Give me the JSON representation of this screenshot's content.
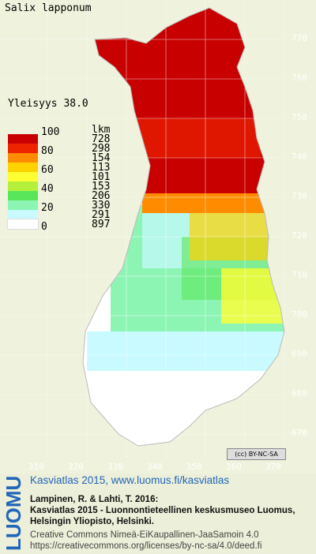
{
  "species": "Salix lapponum",
  "frequency_label": "Yleisyys 38.0",
  "legend": {
    "count_header": "lkm",
    "classes": [
      {
        "value": "100",
        "count": "728",
        "color": "#c80000"
      },
      {
        "value": "80",
        "count": "298",
        "color": "#ee2400"
      },
      {
        "value": "",
        "count": "154",
        "color": "#ff8c00"
      },
      {
        "value": "60",
        "count": "113",
        "color": "#ffd200"
      },
      {
        "value": "",
        "count": "101",
        "color": "#ffff33"
      },
      {
        "value": "40",
        "count": "153",
        "color": "#b4f03c"
      },
      {
        "value": "",
        "count": "206",
        "color": "#5ae65a"
      },
      {
        "value": "20",
        "count": "330",
        "color": "#8cf5b4"
      },
      {
        "value": "",
        "count": "291",
        "color": "#c8faff"
      },
      {
        "value": "0",
        "count": "897",
        "color": "#ffffff"
      }
    ]
  },
  "y_axis_labels": [
    "770",
    "760",
    "750",
    "740",
    "730",
    "720",
    "710",
    "700",
    "690",
    "680",
    "670"
  ],
  "x_axis_labels": [
    "310",
    "320",
    "330",
    "340",
    "350",
    "360",
    "370"
  ],
  "license_badge": "(cc) BY-NC-SA",
  "footer": {
    "logo_text": "LUOMUS",
    "title": "Kasviatlas 2015, www.luomus.fi/kasviatlas",
    "ref_line1": "Lampinen, R. & Lahti, T. 2016:",
    "ref_line2": "Kasviatlas 2015 - Luonnontieteellinen keskusmuseo Luomus,",
    "ref_line3": "Helsingin Yliopisto, Helsinki.",
    "license_line1": "Creative Commons Nimeä-EiKaupallinen-JaaSamoin 4.0",
    "license_line2": "https://creativecommons.org/licenses/by-nc-sa/4.0/deed.fi"
  },
  "colors": {
    "footer_title": "#2366b8",
    "logo": "#2366b8",
    "map_background": "#eff2dc"
  }
}
